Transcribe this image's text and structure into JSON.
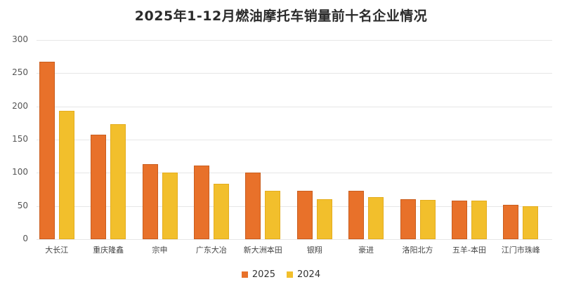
{
  "chart_data": {
    "type": "bar",
    "title": "2025年1-12月燃油摩托车销量前十名企业情况",
    "xlabel": "",
    "ylabel": "",
    "ylim": [
      0,
      300
    ],
    "yticks": [
      0,
      50,
      100,
      150,
      200,
      250,
      300
    ],
    "grid": true,
    "legend_position": "bottom",
    "categories": [
      "大长江",
      "重庆隆鑫",
      "宗申",
      "广东大冶",
      "新大洲本田",
      "银翔",
      "豪进",
      "洛阳北方",
      "五羊-本田",
      "江门市珠峰"
    ],
    "series": [
      {
        "name": "2025",
        "color": "#e8712a",
        "values": [
          267,
          157,
          113,
          111,
          100,
          73,
          73,
          60,
          58,
          52
        ]
      },
      {
        "name": "2024",
        "color": "#f2bf2c",
        "values": [
          193,
          173,
          100,
          83,
          73,
          60,
          63,
          59,
          58,
          50
        ]
      }
    ]
  }
}
